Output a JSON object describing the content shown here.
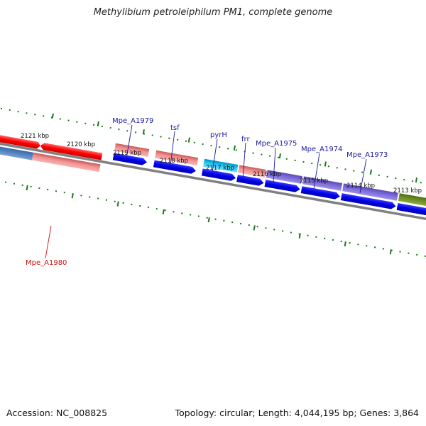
{
  "title": "Methylibium petroleiphilum PM1, complete genome",
  "footer": {
    "accession": "Accession: NC_008825",
    "summary": "Topology: circular; Length: 4,044,195 bp; Genes: 3,864"
  },
  "tick_labels": [
    "2121 kbp",
    "2120 kbp",
    "2119 kbp",
    "2118 kbp",
    "2117 kbp",
    "2116 kbp",
    "2115 kbp",
    "2114 kbp",
    "2113 kbp"
  ],
  "gene_labels": {
    "mpe_a1979": "Mpe_A1979",
    "tsf": "tsf",
    "pyrH": "pyrH",
    "frr": "frr",
    "mpe_a1975": "Mpe_A1975",
    "mpe_a1974": "Mpe_A1974",
    "mpe_a1973": "Mpe_A1973",
    "mpe_a1980": "Mpe_A1980"
  },
  "colors": {
    "backbone": "#808080",
    "tick": "#1a7a1a",
    "cds_blue": "#0000e6",
    "red_feature": "#ff0000",
    "pink_feature": "#f08080",
    "cyan_feature": "#00b8e6",
    "purple_feature": "#7b68d6",
    "olive_feature": "#6b8e23",
    "steel_feature": "#4f7fb8"
  }
}
